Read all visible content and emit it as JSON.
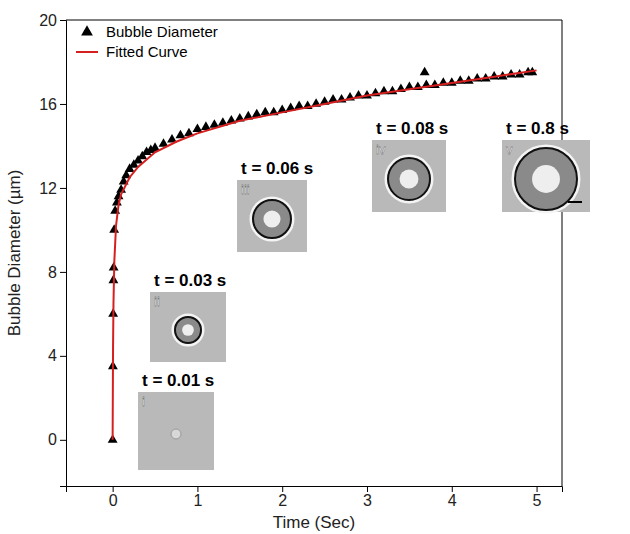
{
  "chart_data": {
    "type": "scatter",
    "x_label": "Time (Sec)",
    "y_label": "Bubble Diameter (µm)",
    "xlim": [
      -0.55,
      5.3
    ],
    "xticks": [
      0,
      1,
      2,
      3,
      4,
      5
    ],
    "ylim": [
      -2.2,
      20
    ],
    "yticks": [
      0,
      4,
      8,
      12,
      16,
      20
    ],
    "grid": false,
    "legend": "upper left",
    "series": [
      {
        "name": "Bubble Diameter",
        "type": "scatter",
        "marker": "triangle",
        "color": "#000000",
        "x": [
          0,
          0.003,
          0.006,
          0.009,
          0.012,
          0.018,
          0.03,
          0.05,
          0.07,
          0.1,
          0.13,
          0.16,
          0.2,
          0.25,
          0.3,
          0.35,
          0.4,
          0.45,
          0.5,
          0.6,
          0.7,
          0.8,
          0.9,
          1.0,
          1.1,
          1.2,
          1.3,
          1.4,
          1.5,
          1.6,
          1.7,
          1.8,
          1.9,
          2.0,
          2.1,
          2.2,
          2.3,
          2.4,
          2.5,
          2.6,
          2.7,
          2.8,
          2.9,
          3.0,
          3.1,
          3.2,
          3.3,
          3.4,
          3.5,
          3.6,
          3.68,
          3.7,
          3.8,
          3.9,
          4.0,
          4.1,
          4.2,
          4.3,
          4.4,
          4.5,
          4.6,
          4.7,
          4.8,
          4.9,
          4.95
        ],
        "values": [
          0,
          3.5,
          6.0,
          7.6,
          8.2,
          10.0,
          10.9,
          11.3,
          11.6,
          11.9,
          12.3,
          12.6,
          12.9,
          13.1,
          13.3,
          13.5,
          13.7,
          13.8,
          13.9,
          14.1,
          14.3,
          14.5,
          14.6,
          14.8,
          14.9,
          15.0,
          15.1,
          15.2,
          15.3,
          15.4,
          15.5,
          15.6,
          15.6,
          15.7,
          15.8,
          15.9,
          15.9,
          16.0,
          16.1,
          16.2,
          16.2,
          16.3,
          16.4,
          16.4,
          16.5,
          16.6,
          16.6,
          16.7,
          16.8,
          16.8,
          17.5,
          16.9,
          16.9,
          17.0,
          17.0,
          17.1,
          17.1,
          17.2,
          17.2,
          17.3,
          17.3,
          17.4,
          17.4,
          17.5,
          17.5
        ]
      },
      {
        "name": "Fitted Curve",
        "type": "line",
        "line_style": "solid",
        "color": "#d62020",
        "x": [
          0,
          0.005,
          0.01,
          0.02,
          0.04,
          0.07,
          0.1,
          0.2,
          0.3,
          0.5,
          0.75,
          1.0,
          1.5,
          2.0,
          2.5,
          3.0,
          3.5,
          4.0,
          4.5,
          5.0
        ],
        "values": [
          0,
          4.5,
          6.5,
          8.5,
          10.2,
          11.2,
          11.7,
          12.5,
          13.0,
          13.7,
          14.2,
          14.6,
          15.2,
          15.6,
          16.0,
          16.4,
          16.7,
          17.0,
          17.3,
          17.6
        ]
      }
    ],
    "annotations": [
      {
        "text": "t = 0.01 s",
        "label": "i"
      },
      {
        "text": "t = 0.03 s",
        "label": "ii"
      },
      {
        "text": "t = 0.06 s",
        "label": "iii"
      },
      {
        "text": "t = 0.08 s",
        "label": "iv"
      },
      {
        "text": "t = 0.8 s",
        "label": "v"
      }
    ]
  }
}
